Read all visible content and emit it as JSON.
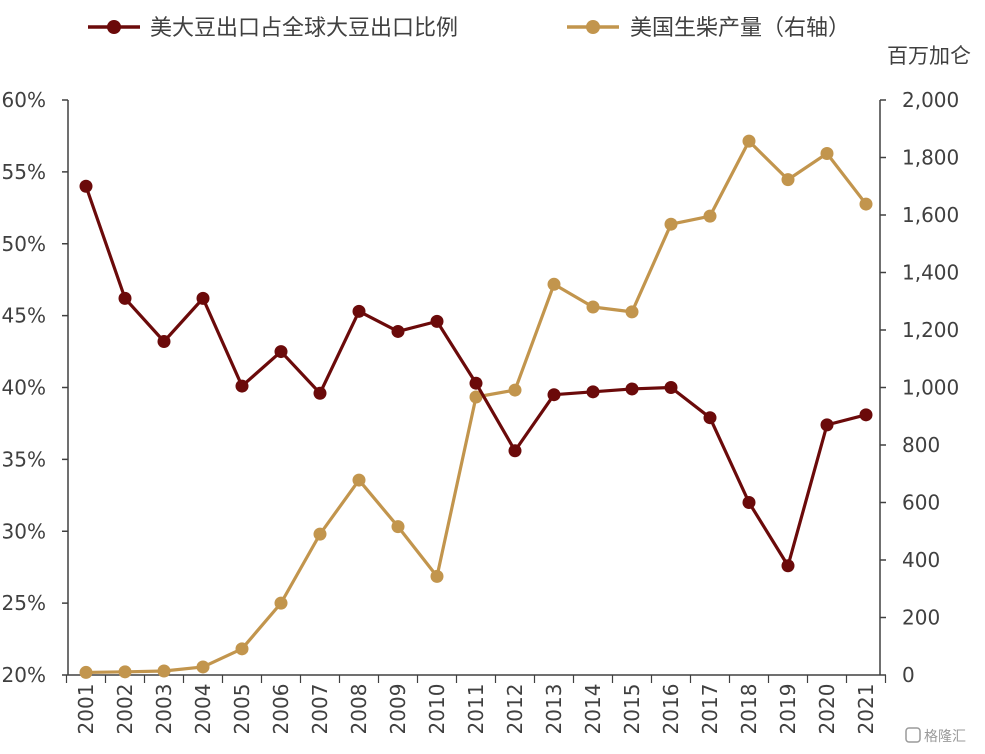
{
  "watermark": "格隆汇",
  "chart_data": {
    "type": "line",
    "title": "",
    "x": [
      "2001",
      "2002",
      "2003",
      "2004",
      "2005",
      "2006",
      "2007",
      "2008",
      "2009",
      "2010",
      "2011",
      "2012",
      "2013",
      "2014",
      "2015",
      "2016",
      "2017",
      "2018",
      "2019",
      "2020",
      "2021"
    ],
    "y_left": {
      "ylim": [
        20,
        60
      ],
      "ticks": [
        "20%",
        "25%",
        "30%",
        "35%",
        "40%",
        "45%",
        "50%",
        "55%",
        "60%"
      ],
      "tick_values": [
        20,
        25,
        30,
        35,
        40,
        45,
        50,
        55,
        60
      ]
    },
    "y_right": {
      "unit_label": "百万加仑",
      "ylim": [
        0,
        2000
      ],
      "ticks": [
        "0",
        "200",
        "400",
        "600",
        "800",
        "1,000",
        "1,200",
        "1,400",
        "1,600",
        "1,800",
        "2,000"
      ],
      "tick_values": [
        0,
        200,
        400,
        600,
        800,
        1000,
        1200,
        1400,
        1600,
        1800,
        2000
      ]
    },
    "series": [
      {
        "name": "美大豆出口占全球大豆出口比例",
        "axis": "left",
        "color": "#6b0a0a",
        "values": [
          54.0,
          46.2,
          43.2,
          46.2,
          40.1,
          42.5,
          39.6,
          45.3,
          43.9,
          44.6,
          40.3,
          35.6,
          39.5,
          39.7,
          39.9,
          40.0,
          37.9,
          32.0,
          27.6,
          37.4,
          38.1
        ]
      },
      {
        "name": "美国生柴产量（右轴）",
        "axis": "right",
        "color": "#c2954d",
        "values": [
          9,
          11,
          14,
          28,
          91,
          250,
          490,
          678,
          516,
          343,
          967,
          991,
          1359,
          1280,
          1263,
          1568,
          1596,
          1857,
          1723,
          1814,
          1638
        ]
      }
    ],
    "legend": "top",
    "grid": false
  }
}
